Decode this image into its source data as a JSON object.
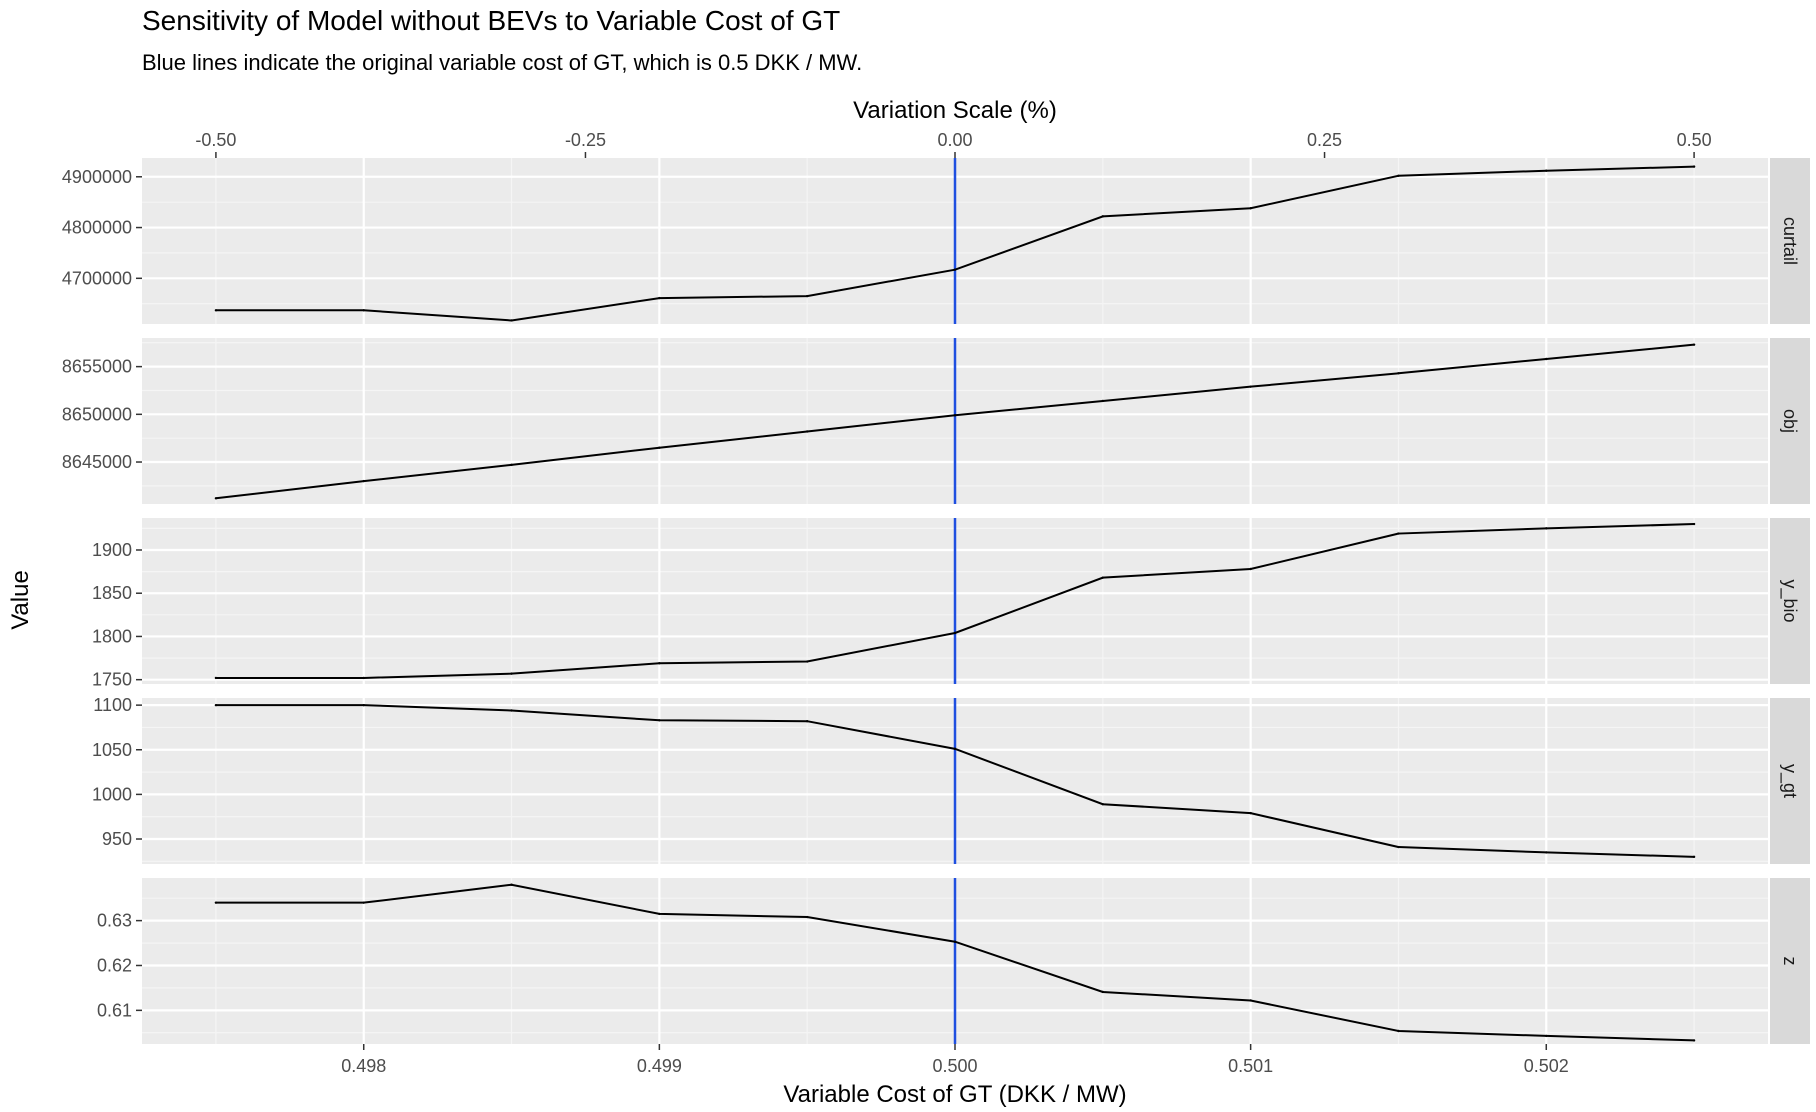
{
  "chart_data": {
    "type": "line",
    "title": "Sensitivity of Model without BEVs to Variable Cost of GT",
    "subtitle": "Blue lines indicate the original variable cost of GT, which is 0.5 DKK / MW.",
    "xlabel": "Variable Cost of GT (DKK / MW)",
    "ylabel": "Value",
    "x2label": "Variation Scale (%)",
    "x": [
      0.4975,
      0.498,
      0.4985,
      0.499,
      0.4995,
      0.5,
      0.5005,
      0.501,
      0.5015,
      0.502,
      0.5025
    ],
    "xlim": [
      0.49725,
      0.50275
    ],
    "x_ticks": [
      "0.498",
      "0.499",
      "0.500",
      "0.501",
      "0.502"
    ],
    "x_tick_values": [
      0.498,
      0.499,
      0.5,
      0.501,
      0.502
    ],
    "x2_ticks": [
      "-0.50",
      "-0.25",
      "0.00",
      "0.25",
      "0.50"
    ],
    "x2_tick_values": [
      -0.5,
      -0.25,
      0.0,
      0.25,
      0.5
    ],
    "reference_x": 0.5,
    "reference_color": "#1f4fe0",
    "line_color": "#000000",
    "panel_background": "#ebebeb",
    "strip_background": "#d9d9d9",
    "grid": true,
    "panels": [
      {
        "strip": "curtail",
        "values": [
          4637000,
          4637000,
          4617000,
          4661000,
          4665000,
          4717000,
          4822000,
          4838000,
          4902000,
          4912000,
          4920000
        ],
        "ylim": [
          4610000,
          4937000
        ],
        "y_ticks": [
          "4700000",
          "4800000",
          "4900000"
        ],
        "y_tick_values": [
          4700000,
          4800000,
          4900000
        ]
      },
      {
        "strip": "obj",
        "values": [
          8641200,
          8643000,
          8644700,
          8646500,
          8648200,
          8649900,
          8651400,
          8652900,
          8654300,
          8655800,
          8657300
        ],
        "ylim": [
          8640600,
          8658000
        ],
        "y_ticks": [
          "8645000",
          "8650000",
          "8655000"
        ],
        "y_tick_values": [
          8645000,
          8650000,
          8655000
        ]
      },
      {
        "strip": "y_bio",
        "values": [
          1752,
          1752,
          1757,
          1769,
          1771,
          1804,
          1868,
          1878,
          1919,
          1925,
          1930
        ],
        "ylim": [
          1745,
          1937
        ],
        "y_ticks": [
          "1750",
          "1800",
          "1850",
          "1900"
        ],
        "y_tick_values": [
          1750,
          1800,
          1850,
          1900
        ]
      },
      {
        "strip": "y_gt",
        "values": [
          1100,
          1100,
          1094,
          1083,
          1082,
          1051,
          989,
          979,
          941,
          935,
          930
        ],
        "ylim": [
          922,
          1108
        ],
        "y_ticks": [
          "950",
          "1000",
          "1050",
          "1100"
        ],
        "y_tick_values": [
          950,
          1000,
          1050,
          1100
        ]
      },
      {
        "strip": "z",
        "values": [
          0.634,
          0.634,
          0.638,
          0.6315,
          0.6308,
          0.6253,
          0.6141,
          0.6122,
          0.6054,
          0.6043,
          0.6033
        ],
        "ylim": [
          0.6025,
          0.6395
        ],
        "y_ticks": [
          "0.61",
          "0.62",
          "0.63"
        ],
        "y_tick_values": [
          0.61,
          0.62,
          0.63
        ]
      }
    ]
  }
}
